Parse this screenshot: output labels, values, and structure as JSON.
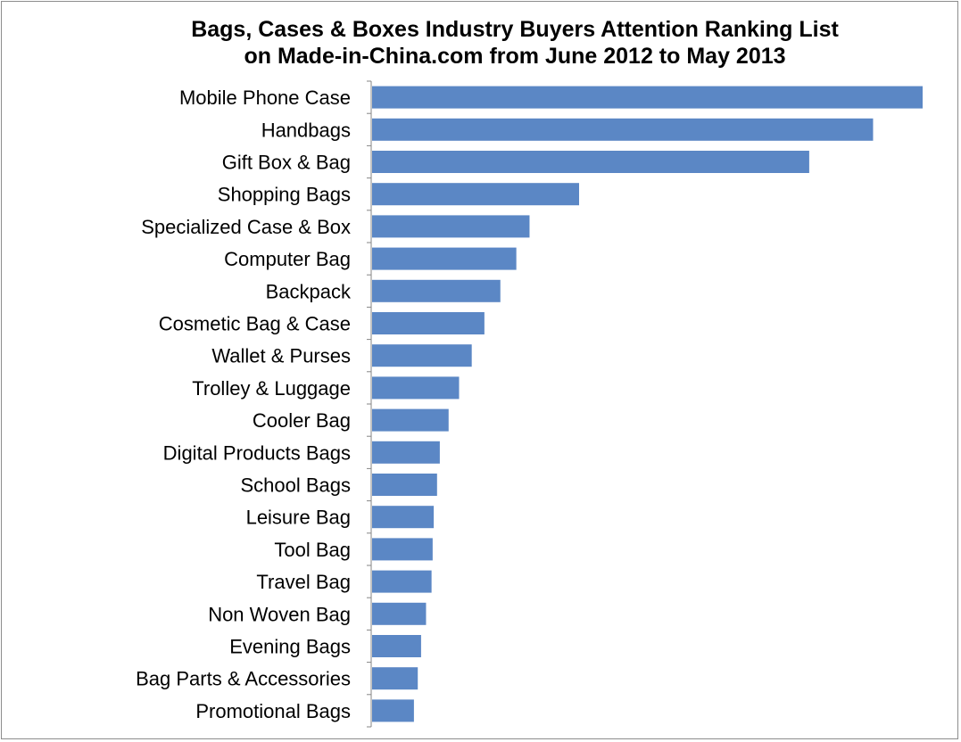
{
  "chart_data": {
    "type": "bar",
    "orientation": "horizontal",
    "title": "Bags, Cases & Boxes Industry Buyers Attention Ranking List on Made-in-China.com from June 2012 to May 2013",
    "title_lines": [
      "Bags, Cases & Boxes Industry Buyers Attention Ranking List",
      "on Made-in-China.com from June 2012 to May 2013"
    ],
    "categories": [
      "Mobile Phone Case",
      "Handbags",
      "Gift Box & Bag",
      "Shopping Bags",
      "Specialized Case & Box",
      "Computer Bag",
      "Backpack",
      "Cosmetic Bag & Case",
      "Wallet & Purses",
      "Trolley & Luggage",
      "Cooler Bag",
      "Digital Products Bags",
      "School Bags",
      "Leisure Bag",
      "Tool Bag",
      "Travel Bag",
      "Non Woven Bag",
      "Evening Bags",
      "Bag Parts & Accessories",
      "Promotional Bags"
    ],
    "values": [
      100,
      91,
      79.4,
      37.6,
      28.6,
      26.2,
      23.3,
      20.4,
      18.1,
      15.8,
      13.9,
      12.3,
      11.8,
      11.2,
      11.0,
      10.8,
      9.8,
      8.9,
      8.3,
      7.6
    ],
    "value_axis_shown": false,
    "xlim": [
      0,
      100
    ],
    "xlabel": "",
    "ylabel": "",
    "grid": false,
    "legend": "none",
    "bar_color": "#5B87C5"
  }
}
